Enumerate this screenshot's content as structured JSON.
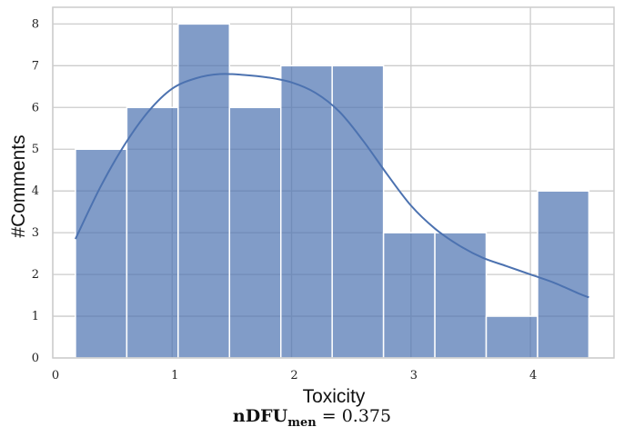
{
  "chart_data": {
    "type": "bar",
    "subtype": "histogram-with-kde",
    "xlabel": "Toxicity",
    "ylabel": "#Comments",
    "xlim": [
      0,
      4.7
    ],
    "ylim": [
      0,
      8.4
    ],
    "xticks": [
      0,
      1,
      2,
      3,
      4
    ],
    "yticks": [
      0,
      1,
      2,
      3,
      4,
      5,
      6,
      7,
      8
    ],
    "grid": true,
    "bar_color": "#4c72b0",
    "bins": [
      {
        "x0": 0.19,
        "x1": 0.62,
        "count": 5
      },
      {
        "x0": 0.62,
        "x1": 1.05,
        "count": 6
      },
      {
        "x0": 1.05,
        "x1": 1.48,
        "count": 8
      },
      {
        "x0": 1.48,
        "x1": 1.91,
        "count": 6
      },
      {
        "x0": 1.91,
        "x1": 2.34,
        "count": 7
      },
      {
        "x0": 2.34,
        "x1": 2.77,
        "count": 7
      },
      {
        "x0": 2.77,
        "x1": 3.2,
        "count": 3
      },
      {
        "x0": 3.2,
        "x1": 3.63,
        "count": 3
      },
      {
        "x0": 3.63,
        "x1": 4.06,
        "count": 1
      },
      {
        "x0": 4.06,
        "x1": 4.49,
        "count": 4
      }
    ],
    "kde": {
      "x": [
        0.19,
        0.4,
        0.6,
        0.8,
        1.0,
        1.2,
        1.4,
        1.6,
        1.8,
        2.0,
        2.2,
        2.4,
        2.6,
        2.8,
        3.0,
        3.2,
        3.4,
        3.6,
        3.8,
        4.0,
        4.2,
        4.4,
        4.49
      ],
      "y": [
        2.85,
        4.1,
        5.1,
        5.9,
        6.45,
        6.7,
        6.8,
        6.78,
        6.72,
        6.6,
        6.35,
        5.9,
        5.2,
        4.4,
        3.65,
        3.1,
        2.7,
        2.4,
        2.2,
        2.0,
        1.8,
        1.55,
        1.45
      ]
    }
  },
  "caption": {
    "main": "nDFU",
    "subscript": "men",
    "value": " = 0.375"
  }
}
